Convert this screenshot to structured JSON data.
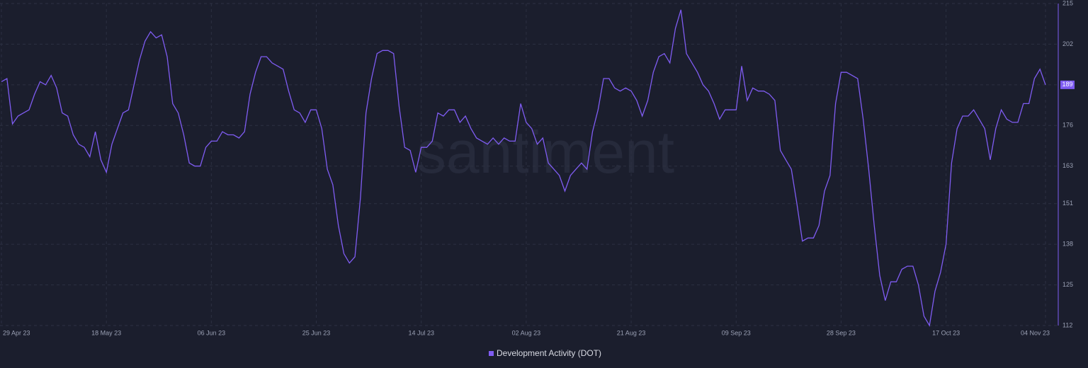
{
  "chart_data": {
    "type": "line",
    "watermark": "santiment",
    "categories": [
      "29 Apr 23",
      null,
      null,
      null,
      null,
      null,
      null,
      null,
      null,
      null,
      null,
      null,
      null,
      null,
      null,
      null,
      null,
      null,
      null,
      "18 May 23",
      null,
      null,
      null,
      null,
      null,
      null,
      null,
      null,
      null,
      null,
      null,
      null,
      null,
      null,
      null,
      null,
      null,
      null,
      "06 Jun 23",
      null,
      null,
      null,
      null,
      null,
      null,
      null,
      null,
      null,
      null,
      null,
      null,
      null,
      null,
      null,
      null,
      null,
      null,
      "25 Jun 23",
      null,
      null,
      null,
      null,
      null,
      null,
      null,
      null,
      null,
      null,
      null,
      null,
      null,
      null,
      null,
      null,
      null,
      null,
      "14 Jul 23",
      null,
      null,
      null,
      null,
      null,
      null,
      null,
      null,
      null,
      null,
      null,
      null,
      null,
      null,
      null,
      null,
      null,
      null,
      "02 Aug 23",
      null,
      null,
      null,
      null,
      null,
      null,
      null,
      null,
      null,
      null,
      null,
      null,
      null,
      null,
      null,
      null,
      null,
      null,
      "21 Aug 23",
      null,
      null,
      null,
      null,
      null,
      null,
      null,
      null,
      null,
      null,
      null,
      null,
      null,
      null,
      null,
      null,
      null,
      null,
      "09 Sep 23",
      null,
      null,
      null,
      null,
      null,
      null,
      null,
      null,
      null,
      null,
      null,
      null,
      null,
      null,
      null,
      null,
      null,
      null,
      "28 Sep 23",
      null,
      null,
      null,
      null,
      null,
      null,
      null,
      null,
      null,
      null,
      null,
      null,
      null,
      null,
      null,
      null,
      null,
      null,
      "17 Oct 23",
      null,
      null,
      null,
      null,
      null,
      null,
      null,
      null,
      null,
      null,
      null,
      null,
      null,
      null,
      null,
      null,
      null,
      "04 Nov 23"
    ],
    "series": [
      {
        "name": "Development Activity (DOT)",
        "color": "#7f5cf2",
        "values": [
          190,
          191,
          176.5,
          179,
          180,
          181,
          186,
          190,
          189,
          192,
          188,
          180,
          179,
          173,
          170,
          169,
          166,
          174,
          165,
          161,
          170,
          175,
          180,
          181,
          189,
          197,
          203,
          206,
          204,
          205,
          198,
          183,
          180,
          173,
          164,
          163,
          163,
          169,
          171,
          171,
          174,
          173,
          173,
          172,
          174,
          186,
          193,
          198,
          198,
          196,
          195,
          194,
          187,
          181,
          180,
          177,
          181,
          181,
          175,
          162,
          157,
          144,
          135,
          132,
          134,
          153,
          180,
          191,
          199,
          200,
          200,
          199,
          182,
          169,
          168,
          161,
          169,
          169,
          171,
          180,
          179,
          181,
          181,
          177,
          179,
          175,
          172,
          171,
          170,
          172,
          170,
          172,
          171,
          171,
          183,
          177,
          175,
          170,
          172,
          164,
          162,
          160,
          155,
          160,
          162,
          164,
          162,
          174,
          181,
          191,
          191,
          188,
          187,
          188,
          187,
          184,
          179,
          184,
          193,
          198,
          199,
          196,
          207,
          213,
          199,
          196,
          193,
          189,
          187,
          183,
          178,
          181,
          181,
          181,
          195,
          184,
          188,
          187,
          187,
          186,
          184,
          168,
          165,
          162,
          151,
          139,
          140,
          140,
          144,
          155,
          160,
          183,
          193,
          193,
          192,
          191,
          178,
          162,
          144,
          128,
          120,
          126,
          126,
          130,
          131,
          131,
          125,
          115,
          112,
          123,
          129,
          138,
          164,
          175,
          179,
          179,
          181,
          178,
          175,
          165,
          175,
          181,
          178,
          177,
          177,
          183,
          183,
          191,
          194,
          189
        ]
      }
    ],
    "ylim": [
      112,
      215
    ],
    "yticks": [
      112,
      125,
      138,
      151,
      163,
      176,
      189,
      202,
      215
    ],
    "grid": true
  }
}
